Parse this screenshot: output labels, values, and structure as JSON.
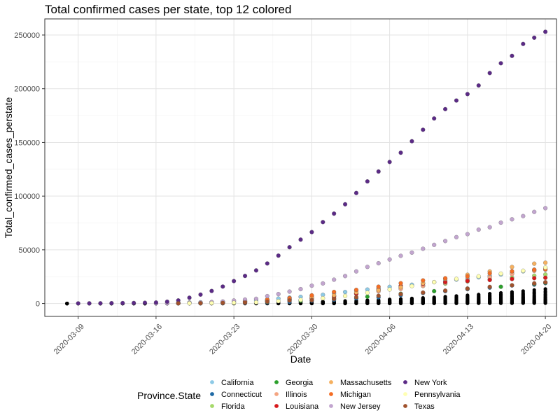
{
  "chart_data": {
    "type": "scatter",
    "title": "Total confirmed cases per state, top 12 colored",
    "xlabel": "Date",
    "ylabel": "Total_confirmed_cases_perstate",
    "x_range": [
      "2020-03-06",
      "2020-04-21"
    ],
    "ylim": [
      -12000,
      265000
    ],
    "x_ticks": [
      "2020-03-09",
      "2020-03-16",
      "2020-03-23",
      "2020-03-30",
      "2020-04-06",
      "2020-04-13",
      "2020-04-20"
    ],
    "y_ticks": [
      0,
      50000,
      100000,
      150000,
      200000,
      250000
    ],
    "y_tick_labels": [
      "0",
      "50000",
      "100000",
      "150000",
      "200000",
      "250000"
    ],
    "grid": true,
    "legend": {
      "title": "Province.State",
      "placement": "bottom"
    },
    "series": [
      {
        "name": "California",
        "color": "#8ecae6",
        "x": [
          "2020-03-18",
          "2020-03-19",
          "2020-03-20",
          "2020-03-21",
          "2020-03-22",
          "2020-03-23",
          "2020-03-24",
          "2020-03-25",
          "2020-03-26",
          "2020-03-27",
          "2020-03-28",
          "2020-03-29",
          "2020-03-30",
          "2020-03-31",
          "2020-04-01",
          "2020-04-02",
          "2020-04-03",
          "2020-04-04",
          "2020-04-05",
          "2020-04-06",
          "2020-04-07",
          "2020-04-08",
          "2020-04-09",
          "2020-04-10",
          "2020-04-11",
          "2020-04-12",
          "2020-04-13",
          "2020-04-14",
          "2020-04-15",
          "2020-04-16",
          "2020-04-17",
          "2020-04-18",
          "2020-04-19",
          "2020-04-20"
        ],
        "y": [
          700,
          900,
          1100,
          1300,
          1600,
          2100,
          2500,
          3000,
          3800,
          4600,
          5500,
          6200,
          7000,
          8100,
          9400,
          10700,
          11900,
          13000,
          14300,
          15500,
          16500,
          17500,
          18800,
          19900,
          21100,
          22300,
          23300,
          24400,
          25800,
          27000,
          28500,
          30000,
          31500,
          33000
        ]
      },
      {
        "name": "Connecticut",
        "color": "#1f6aa5",
        "x": [
          "2020-03-20",
          "2020-03-22",
          "2020-03-24",
          "2020-03-26",
          "2020-03-28",
          "2020-03-30",
          "2020-04-01",
          "2020-04-03",
          "2020-04-05",
          "2020-04-07",
          "2020-04-09",
          "2020-04-11",
          "2020-04-13",
          "2020-04-15",
          "2020-04-17",
          "2020-04-19",
          "2020-04-20"
        ],
        "y": [
          200,
          350,
          600,
          1000,
          1500,
          2600,
          3500,
          4900,
          5700,
          7800,
          9800,
          11500,
          13400,
          14800,
          16800,
          17600,
          19000
        ]
      },
      {
        "name": "Florida",
        "color": "#a6d96a",
        "x": [
          "2020-03-18",
          "2020-03-20",
          "2020-03-22",
          "2020-03-24",
          "2020-03-26",
          "2020-03-28",
          "2020-03-30",
          "2020-04-01",
          "2020-04-03",
          "2020-04-05",
          "2020-04-07",
          "2020-04-09",
          "2020-04-11",
          "2020-04-13",
          "2020-04-15",
          "2020-04-17",
          "2020-04-19",
          "2020-04-20"
        ],
        "y": [
          300,
          500,
          1000,
          1500,
          2400,
          4000,
          5500,
          7000,
          9500,
          12200,
          14700,
          16400,
          18500,
          20600,
          22500,
          24100,
          25900,
          27000
        ]
      },
      {
        "name": "Georgia",
        "color": "#2ca02c",
        "x": [
          "2020-03-20",
          "2020-03-23",
          "2020-03-26",
          "2020-03-29",
          "2020-04-01",
          "2020-04-04",
          "2020-04-07",
          "2020-04-10",
          "2020-04-13",
          "2020-04-16",
          "2020-04-19",
          "2020-04-20"
        ],
        "y": [
          300,
          700,
          1500,
          2500,
          4700,
          6300,
          9100,
          11500,
          13900,
          15600,
          18300,
          19400
        ]
      },
      {
        "name": "Illinois",
        "color": "#f4a582",
        "x": [
          "2020-03-18",
          "2020-03-20",
          "2020-03-22",
          "2020-03-24",
          "2020-03-26",
          "2020-03-28",
          "2020-03-30",
          "2020-04-01",
          "2020-04-03",
          "2020-04-05",
          "2020-04-07",
          "2020-04-09",
          "2020-04-11",
          "2020-04-13",
          "2020-04-15",
          "2020-04-17",
          "2020-04-19",
          "2020-04-20"
        ],
        "y": [
          300,
          600,
          1200,
          1800,
          2600,
          3500,
          5000,
          6900,
          8900,
          11300,
          13600,
          16400,
          19200,
          21800,
          24600,
          27500,
          30400,
          31500
        ]
      },
      {
        "name": "Louisiana",
        "color": "#d7191c",
        "x": [
          "2020-03-18",
          "2020-03-20",
          "2020-03-22",
          "2020-03-24",
          "2020-03-26",
          "2020-03-28",
          "2020-03-30",
          "2020-04-01",
          "2020-04-03",
          "2020-04-05",
          "2020-04-07",
          "2020-04-09",
          "2020-04-11",
          "2020-04-13",
          "2020-04-15",
          "2020-04-17",
          "2020-04-19",
          "2020-04-20"
        ],
        "y": [
          200,
          500,
          900,
          1800,
          2700,
          3500,
          4500,
          6200,
          9200,
          13000,
          16300,
          18300,
          20000,
          21000,
          21900,
          22800,
          23600,
          24000
        ]
      },
      {
        "name": "Massachusetts",
        "color": "#f5b060",
        "x": [
          "2020-03-18",
          "2020-03-20",
          "2020-03-22",
          "2020-03-24",
          "2020-03-26",
          "2020-03-28",
          "2020-03-30",
          "2020-04-01",
          "2020-04-03",
          "2020-04-05",
          "2020-04-07",
          "2020-04-09",
          "2020-04-11",
          "2020-04-13",
          "2020-04-15",
          "2020-04-17",
          "2020-04-19",
          "2020-04-20"
        ],
        "y": [
          200,
          400,
          600,
          1100,
          2400,
          4300,
          5700,
          7700,
          10400,
          12500,
          15200,
          18900,
          22900,
          26800,
          29900,
          34000,
          37100,
          38000
        ]
      },
      {
        "name": "Michigan",
        "color": "#f46d24",
        "x": [
          "2020-03-18",
          "2020-03-20",
          "2020-03-22",
          "2020-03-24",
          "2020-03-26",
          "2020-03-28",
          "2020-03-30",
          "2020-04-01",
          "2020-04-03",
          "2020-04-05",
          "2020-04-07",
          "2020-04-09",
          "2020-04-11",
          "2020-04-13",
          "2020-04-15",
          "2020-04-17",
          "2020-04-19",
          "2020-04-20"
        ],
        "y": [
          100,
          500,
          1000,
          2300,
          3600,
          5000,
          7600,
          10800,
          12700,
          15700,
          18900,
          21500,
          23500,
          25300,
          28100,
          30000,
          31400,
          32000
        ]
      },
      {
        "name": "New Jersey",
        "color": "#c2a5cf",
        "x": [
          "2020-03-16",
          "2020-03-17",
          "2020-03-18",
          "2020-03-19",
          "2020-03-20",
          "2020-03-21",
          "2020-03-22",
          "2020-03-23",
          "2020-03-24",
          "2020-03-25",
          "2020-03-26",
          "2020-03-27",
          "2020-03-28",
          "2020-03-29",
          "2020-03-30",
          "2020-03-31",
          "2020-04-01",
          "2020-04-02",
          "2020-04-03",
          "2020-04-04",
          "2020-04-05",
          "2020-04-06",
          "2020-04-07",
          "2020-04-08",
          "2020-04-09",
          "2020-04-10",
          "2020-04-11",
          "2020-04-12",
          "2020-04-13",
          "2020-04-14",
          "2020-04-15",
          "2020-04-16",
          "2020-04-17",
          "2020-04-18",
          "2020-04-19",
          "2020-04-20"
        ],
        "y": [
          200,
          300,
          400,
          700,
          900,
          1300,
          1900,
          2800,
          3700,
          4400,
          6900,
          8800,
          11100,
          13400,
          16600,
          18700,
          22200,
          25600,
          29900,
          34100,
          37500,
          41000,
          44400,
          47400,
          51000,
          54600,
          58200,
          61800,
          64600,
          68800,
          71000,
          75300,
          78400,
          81400,
          85300,
          88800
        ]
      },
      {
        "name": "New York",
        "color": "#5b2a86",
        "x": [
          "2020-03-09",
          "2020-03-10",
          "2020-03-11",
          "2020-03-12",
          "2020-03-13",
          "2020-03-14",
          "2020-03-15",
          "2020-03-16",
          "2020-03-17",
          "2020-03-18",
          "2020-03-19",
          "2020-03-20",
          "2020-03-21",
          "2020-03-22",
          "2020-03-23",
          "2020-03-24",
          "2020-03-25",
          "2020-03-26",
          "2020-03-27",
          "2020-03-28",
          "2020-03-29",
          "2020-03-30",
          "2020-03-31",
          "2020-04-01",
          "2020-04-02",
          "2020-04-03",
          "2020-04-04",
          "2020-04-05",
          "2020-04-06",
          "2020-04-07",
          "2020-04-08",
          "2020-04-09",
          "2020-04-10",
          "2020-04-11",
          "2020-04-12",
          "2020-04-13",
          "2020-04-14",
          "2020-04-15",
          "2020-04-16",
          "2020-04-17",
          "2020-04-18",
          "2020-04-19",
          "2020-04-20"
        ],
        "y": [
          150,
          170,
          220,
          330,
          420,
          520,
          730,
          950,
          1700,
          2900,
          5400,
          8300,
          11700,
          15800,
          20900,
          25700,
          30800,
          37300,
          44600,
          52400,
          59500,
          66500,
          75800,
          83700,
          92400,
          102900,
          113700,
          122900,
          131800,
          140400,
          151100,
          161800,
          172300,
          181000,
          189000,
          195000,
          203000,
          214600,
          223700,
          230600,
          241700,
          247500,
          253000
        ]
      },
      {
        "name": "Pennsylvania",
        "color": "#ffffb3",
        "x": [
          "2020-03-19",
          "2020-03-21",
          "2020-03-23",
          "2020-03-25",
          "2020-03-27",
          "2020-03-29",
          "2020-03-31",
          "2020-04-02",
          "2020-04-04",
          "2020-04-06",
          "2020-04-08",
          "2020-04-10",
          "2020-04-12",
          "2020-04-14",
          "2020-04-16",
          "2020-04-18",
          "2020-04-20"
        ],
        "y": [
          200,
          400,
          700,
          1100,
          2200,
          3400,
          4900,
          7000,
          10000,
          13100,
          16200,
          19900,
          22900,
          25300,
          27800,
          30500,
          33500
        ]
      },
      {
        "name": "Texas",
        "color": "#a0522d",
        "x": [
          "2020-03-18",
          "2020-03-20",
          "2020-03-22",
          "2020-03-24",
          "2020-03-26",
          "2020-03-28",
          "2020-03-30",
          "2020-04-01",
          "2020-04-03",
          "2020-04-05",
          "2020-04-07",
          "2020-04-09",
          "2020-04-11",
          "2020-04-13",
          "2020-04-15",
          "2020-04-17",
          "2020-04-19",
          "2020-04-20"
        ],
        "y": [
          200,
          300,
          600,
          900,
          1700,
          2800,
          3100,
          4300,
          5900,
          7200,
          8700,
          10200,
          12000,
          13900,
          15500,
          17000,
          18800,
          19800
        ]
      }
    ],
    "other_states": {
      "color": "#000000",
      "start_date": "2020-03-08",
      "end_date": "2020-04-20",
      "max_values": [
        13500,
        11500,
        10000,
        8500,
        7200,
        6000,
        5000,
        4000,
        3200,
        2500,
        1800,
        1200,
        800,
        400
      ]
    }
  }
}
